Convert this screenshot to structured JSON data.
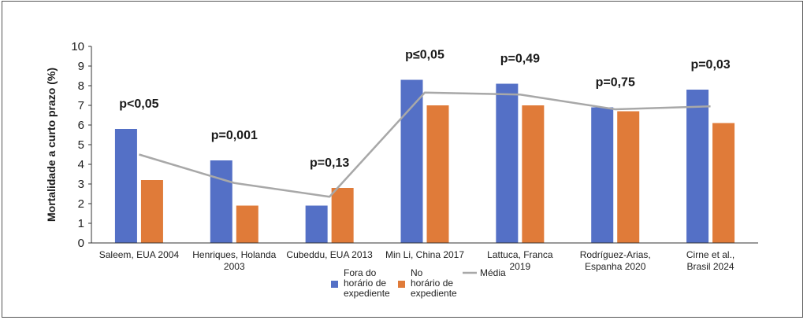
{
  "chart_data": {
    "type": "bar",
    "ylabel": "Mortalidade a curto prazo (%)",
    "ylim": [
      0,
      10
    ],
    "yticks": [
      "0",
      "1",
      "2",
      "3",
      "4",
      "5",
      "6",
      "7",
      "8",
      "9",
      "10"
    ],
    "grid": false,
    "legend_position": "bottom",
    "categories": [
      [
        "Saleem, EUA 2004"
      ],
      [
        "Henriques, Holanda",
        "2003"
      ],
      [
        "Cubeddu, EUA 2013"
      ],
      [
        "Min Li, China 2017"
      ],
      [
        "Lattuca, Franca",
        "2019"
      ],
      [
        "Rodríguez-Arias,",
        "Espanha 2020"
      ],
      [
        "Cirne et al.,",
        "Brasil 2024"
      ]
    ],
    "annotations": [
      "p<0,05",
      "p=0,001",
      "p=0,13",
      "p≤0,05",
      "p=0,49",
      "p=0,75",
      "p=0,03"
    ],
    "series": [
      {
        "name": [
          "Fora do",
          "horário de",
          "expediente"
        ],
        "type": "bar",
        "color": "#5470c6",
        "values": [
          5.8,
          4.2,
          1.9,
          8.3,
          8.1,
          6.9,
          7.8
        ]
      },
      {
        "name": [
          "No",
          "horário de",
          "expediente"
        ],
        "type": "bar",
        "color": "#e07b39",
        "values": [
          3.2,
          1.9,
          2.8,
          7.0,
          7.0,
          6.7,
          6.1
        ]
      },
      {
        "name": [
          "Média"
        ],
        "type": "line",
        "color": "#a8a8a8",
        "values": [
          4.5,
          3.05,
          2.35,
          7.65,
          7.55,
          6.8,
          6.95
        ]
      }
    ]
  }
}
